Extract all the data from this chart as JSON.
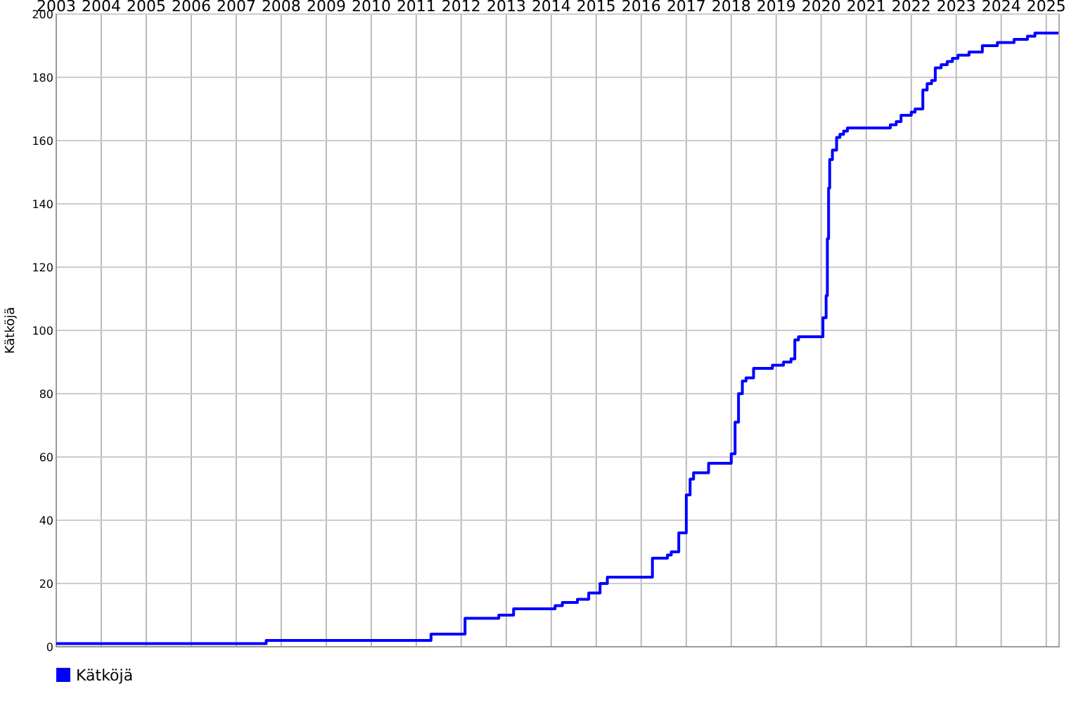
{
  "chart_data": {
    "type": "step",
    "ylabel": "Kätköjä",
    "xlim": [
      "2003-01",
      "2025-04-15"
    ],
    "ylim": [
      0,
      200
    ],
    "xticks": [
      {
        "value": "2003",
        "label": "2003"
      },
      {
        "value": "2004",
        "label": "2004"
      },
      {
        "value": "2005",
        "label": "2005"
      },
      {
        "value": "2006",
        "label": "2006"
      },
      {
        "value": "2007",
        "label": "2007"
      },
      {
        "value": "2008",
        "label": "2008"
      },
      {
        "value": "2009",
        "label": "2009"
      },
      {
        "value": "2010",
        "label": "2010"
      },
      {
        "value": "2011",
        "label": "2011"
      },
      {
        "value": "2012",
        "label": "2012"
      },
      {
        "value": "2013",
        "label": "2013"
      },
      {
        "value": "2014",
        "label": "2014"
      },
      {
        "value": "2015",
        "label": "2015"
      },
      {
        "value": "2016",
        "label": "2016"
      },
      {
        "value": "2017",
        "label": "2017"
      },
      {
        "value": "2018",
        "label": "2018"
      },
      {
        "value": "2019",
        "label": "2019"
      },
      {
        "value": "2020",
        "label": "2020"
      },
      {
        "value": "2021",
        "label": "2021"
      },
      {
        "value": "2022",
        "label": "2022"
      },
      {
        "value": "2023",
        "label": "2023"
      },
      {
        "value": "2024",
        "label": "2024"
      },
      {
        "value": "2025",
        "label": "2025"
      }
    ],
    "yticks": [
      0,
      20,
      40,
      60,
      80,
      100,
      120,
      140,
      160,
      180,
      200
    ],
    "grid": true,
    "legend": "bottom left",
    "x": [
      "2003-01",
      "2007-09",
      "2011-05",
      "2012-02",
      "2012-11",
      "2013-03",
      "2014-02",
      "2014-04",
      "2014-08",
      "2014-11",
      "2015-02",
      "2015-04",
      "2016-04",
      "2016-08",
      "2016-09",
      "2016-11",
      "2017-01",
      "2017-02",
      "2017-03",
      "2017-07",
      "2018-01",
      "2018-02",
      "2018-03",
      "2018-04",
      "2018-05",
      "2018-07",
      "2018-12",
      "2019-03",
      "2019-05",
      "2019-06",
      "2019-07",
      "2020-01-15",
      "2020-02-10",
      "2020-02-20",
      "2020-03-01",
      "2020-03-10",
      "2020-04-01",
      "2020-05-05",
      "2020-06-01",
      "2020-07-01",
      "2020-08-01",
      "2021-07-15",
      "2021-09-01",
      "2021-10-10",
      "2022-01-01",
      "2022-02-01",
      "2022-04-05",
      "2022-05-10",
      "2022-06-15",
      "2022-07-15",
      "2022-09-01",
      "2022-10-20",
      "2022-12-01",
      "2023-01-15",
      "2023-04-15",
      "2023-08-01",
      "2023-12-01",
      "2024-04-15",
      "2024-08-01",
      "2024-10-01",
      "2025-04-10"
    ],
    "series": [
      {
        "name": "Kätköjä",
        "color": "#0000ff",
        "values": [
          1,
          2,
          4,
          9,
          10,
          12,
          13,
          14,
          15,
          17,
          20,
          22,
          28,
          29,
          30,
          36,
          48,
          53,
          55,
          58,
          61,
          71,
          80,
          84,
          85,
          88,
          89,
          90,
          91,
          97,
          98,
          104,
          111,
          129,
          145,
          154,
          157,
          161,
          162,
          163,
          164,
          165,
          166,
          168,
          169,
          170,
          176,
          178,
          179,
          183,
          184,
          185,
          186,
          187,
          188,
          190,
          191,
          192,
          193,
          194,
          194
        ]
      }
    ]
  }
}
